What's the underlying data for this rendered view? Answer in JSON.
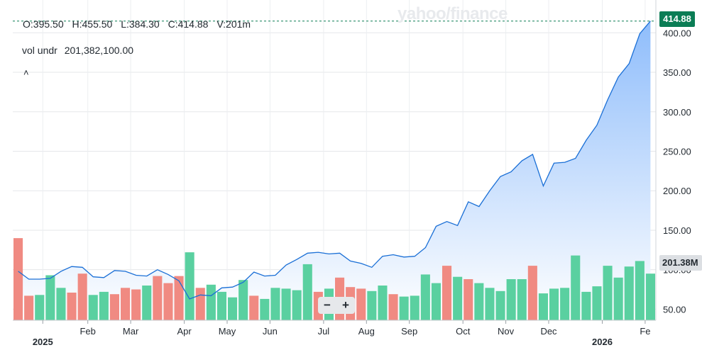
{
  "watermark": "yahoo/finance",
  "ohlc": {
    "open": "O:395.50",
    "high": "H:455.50",
    "low": "L:384.30",
    "close": "C:414.88",
    "volume": "V:201m"
  },
  "volume_indicator": {
    "label": "vol undr",
    "value": "201,382,100.00"
  },
  "collapse_icon": "chevron-up-icon",
  "last_price_tag": "414.88",
  "last_volume_tag": "201.38M",
  "zoom": {
    "minus": "−",
    "plus": "+"
  },
  "colors": {
    "price_line": "#1a6fd6",
    "area_top": "#8fbdfb",
    "area_bottom": "#ffffff",
    "volume_up": "#5ad0a0",
    "volume_down": "#f08a82",
    "price_tag": "#0b7d55",
    "last_price_line": "#0b7d55"
  },
  "chart_data": {
    "type": "line",
    "title": "",
    "xlabel": "",
    "ylabel": "",
    "ylim": [
      36,
      420
    ],
    "y_ticks": [
      "50.00",
      "100.00",
      "150.00",
      "200.00",
      "250.00",
      "300.00",
      "350.00",
      "400.00"
    ],
    "y_tick_values": [
      50,
      100,
      150,
      200,
      250,
      300,
      350,
      400
    ],
    "x_ticks": [
      {
        "label": "2025",
        "year": "2025",
        "index": 2.8
      },
      {
        "label": "Feb",
        "index": 7
      },
      {
        "label": "Mar",
        "index": 11
      },
      {
        "label": "Apr",
        "index": 16
      },
      {
        "label": "May",
        "index": 20
      },
      {
        "label": "Jun",
        "index": 24
      },
      {
        "label": "Jul",
        "index": 29
      },
      {
        "label": "Aug",
        "index": 33
      },
      {
        "label": "Sep",
        "index": 37
      },
      {
        "label": "Oct",
        "index": 42
      },
      {
        "label": "Nov",
        "index": 46
      },
      {
        "label": "Dec",
        "index": 50
      },
      {
        "label": "2026",
        "year": "2026",
        "index": 55
      },
      {
        "label": "Fe",
        "index": 59
      }
    ],
    "price": [
      98,
      88,
      88,
      89,
      98,
      104,
      103,
      91,
      90,
      99,
      98,
      93,
      92,
      100,
      94,
      86,
      63,
      68,
      67,
      77,
      78,
      84,
      97,
      92,
      93,
      106,
      113,
      121,
      122,
      120,
      121,
      111,
      108,
      103,
      117,
      119,
      116,
      117,
      128,
      155,
      161,
      156,
      186,
      180,
      200,
      218,
      224,
      238,
      246,
      206,
      235,
      236,
      241,
      264,
      283,
      315,
      344,
      361,
      399,
      414.88
    ],
    "volume_series": {
      "name": "vol undr",
      "values": [
        140,
        67,
        68,
        93,
        77,
        71,
        95,
        68,
        72,
        69,
        77,
        75,
        80,
        92,
        83,
        92,
        122,
        77,
        81,
        72,
        65,
        87,
        67,
        63,
        77,
        76,
        74,
        107,
        72,
        76,
        90,
        78,
        76,
        73,
        80,
        69,
        66,
        67,
        94,
        83,
        105,
        91,
        88,
        83,
        77,
        73,
        88,
        88,
        105,
        70,
        76,
        77,
        118,
        72,
        79,
        105,
        90,
        104,
        111,
        95
      ],
      "up": [
        false,
        false,
        true,
        true,
        true,
        false,
        false,
        true,
        true,
        false,
        false,
        false,
        true,
        false,
        false,
        false,
        true,
        false,
        true,
        true,
        true,
        true,
        false,
        true,
        true,
        true,
        true,
        true,
        false,
        true,
        false,
        false,
        false,
        true,
        true,
        false,
        true,
        true,
        true,
        true,
        false,
        true,
        false,
        true,
        true,
        true,
        true,
        true,
        false,
        true,
        true,
        true,
        true,
        true,
        true,
        true,
        true,
        true,
        true,
        true
      ]
    }
  }
}
